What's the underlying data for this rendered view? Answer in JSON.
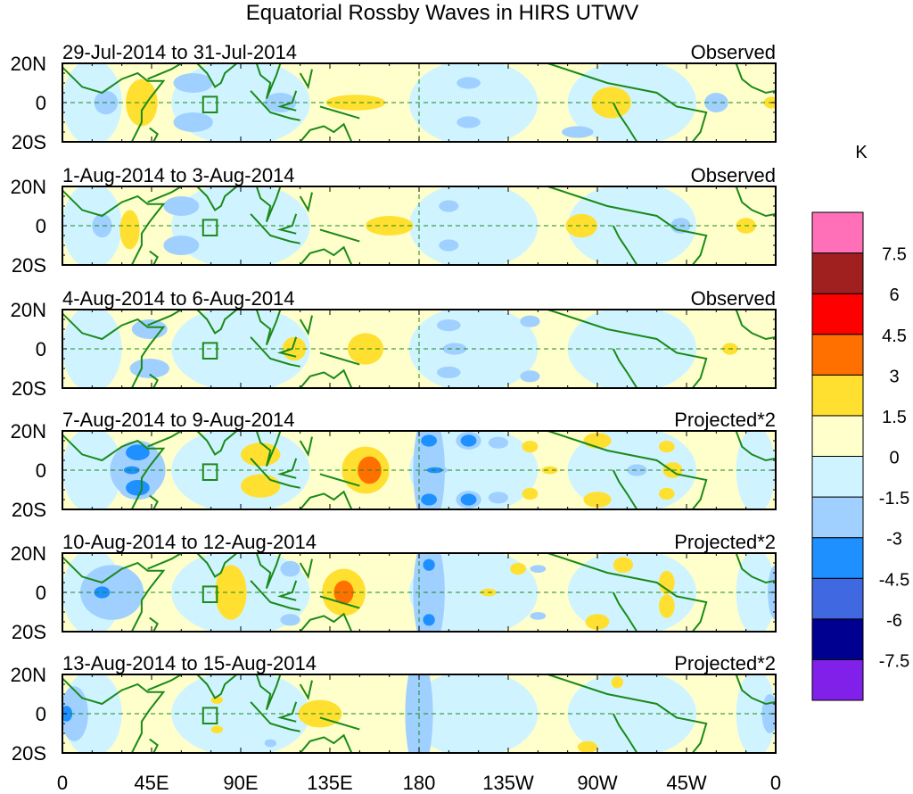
{
  "chart_data": {
    "type": "heatmap",
    "title": "Equatorial Rossby Waves in HIRS UTWV",
    "units_label": "K",
    "xlabel": "",
    "ylabel": "",
    "x_range_deg_east": [
      0,
      360
    ],
    "y_range_deg": [
      -20,
      20
    ],
    "x_tick_labels": [
      "0",
      "45E",
      "90E",
      "135E",
      "180",
      "135W",
      "90W",
      "45W",
      "0"
    ],
    "x_tick_values": [
      0,
      45,
      90,
      135,
      180,
      225,
      270,
      315,
      360
    ],
    "y_tick_labels": [
      "20N",
      "0",
      "20S"
    ],
    "y_tick_values": [
      20,
      0,
      -20
    ],
    "reference_lines": {
      "equator_lat": 0,
      "dateline_lon": 180,
      "style": "dashed green"
    },
    "panels": [
      {
        "date_range": "29-Jul-2014 to 31-Jul-2014",
        "status": "Observed",
        "anomalies": [
          {
            "lon": 40,
            "lat": 0,
            "value": 2.0,
            "sx": 8,
            "sy": 12
          },
          {
            "lon": 148,
            "lat": 0,
            "value": 1.8,
            "sx": 15,
            "sy": 4
          },
          {
            "lon": 277,
            "lat": 0,
            "value": 2.0,
            "sx": 10,
            "sy": 8
          },
          {
            "lon": 358,
            "lat": 0,
            "value": 1.6,
            "sx": 4,
            "sy": 3
          },
          {
            "lon": 22,
            "lat": 0,
            "value": -1.8,
            "sx": 6,
            "sy": 6
          },
          {
            "lon": 66,
            "lat": 10,
            "value": -1.8,
            "sx": 10,
            "sy": 5
          },
          {
            "lon": 66,
            "lat": -10,
            "value": -1.8,
            "sx": 10,
            "sy": 5
          },
          {
            "lon": 110,
            "lat": 0,
            "value": -1.7,
            "sx": 8,
            "sy": 5
          },
          {
            "lon": 205,
            "lat": 10,
            "value": -1.6,
            "sx": 6,
            "sy": 3
          },
          {
            "lon": 205,
            "lat": -10,
            "value": -1.6,
            "sx": 6,
            "sy": 3
          },
          {
            "lon": 330,
            "lat": 0,
            "value": -1.7,
            "sx": 6,
            "sy": 5
          },
          {
            "lon": 260,
            "lat": -15,
            "value": -1.6,
            "sx": 8,
            "sy": 3
          }
        ]
      },
      {
        "date_range": "1-Aug-2014 to 3-Aug-2014",
        "status": "Observed",
        "anomalies": [
          {
            "lon": 34,
            "lat": -2,
            "value": 2.0,
            "sx": 5,
            "sy": 10
          },
          {
            "lon": 165,
            "lat": 0,
            "value": 2.0,
            "sx": 12,
            "sy": 5
          },
          {
            "lon": 262,
            "lat": 0,
            "value": 2.0,
            "sx": 8,
            "sy": 6
          },
          {
            "lon": 345,
            "lat": 0,
            "value": 1.8,
            "sx": 5,
            "sy": 4
          },
          {
            "lon": 20,
            "lat": 0,
            "value": -1.8,
            "sx": 5,
            "sy": 6
          },
          {
            "lon": 60,
            "lat": 10,
            "value": -1.8,
            "sx": 9,
            "sy": 5
          },
          {
            "lon": 60,
            "lat": -10,
            "value": -1.8,
            "sx": 9,
            "sy": 5
          },
          {
            "lon": 195,
            "lat": 10,
            "value": -1.6,
            "sx": 5,
            "sy": 3
          },
          {
            "lon": 195,
            "lat": -10,
            "value": -1.6,
            "sx": 5,
            "sy": 3
          },
          {
            "lon": 312,
            "lat": 0,
            "value": -1.7,
            "sx": 5,
            "sy": 4
          }
        ]
      },
      {
        "date_range": "4-Aug-2014 to 6-Aug-2014",
        "status": "Observed",
        "anomalies": [
          {
            "lon": 117,
            "lat": 0,
            "value": 1.8,
            "sx": 6,
            "sy": 6
          },
          {
            "lon": 153,
            "lat": 0,
            "value": 2.0,
            "sx": 9,
            "sy": 8
          },
          {
            "lon": 337,
            "lat": 0,
            "value": 1.7,
            "sx": 4,
            "sy": 3
          },
          {
            "lon": 44,
            "lat": 10,
            "value": -1.8,
            "sx": 9,
            "sy": 5
          },
          {
            "lon": 44,
            "lat": -10,
            "value": -1.8,
            "sx": 10,
            "sy": 5
          },
          {
            "lon": 195,
            "lat": 12,
            "value": -1.6,
            "sx": 6,
            "sy": 3
          },
          {
            "lon": 198,
            "lat": 0,
            "value": -1.6,
            "sx": 6,
            "sy": 3
          },
          {
            "lon": 195,
            "lat": -12,
            "value": -1.6,
            "sx": 6,
            "sy": 3
          },
          {
            "lon": 236,
            "lat": 14,
            "value": -1.6,
            "sx": 5,
            "sy": 3
          },
          {
            "lon": 236,
            "lat": -14,
            "value": -1.6,
            "sx": 5,
            "sy": 3
          }
        ]
      },
      {
        "date_range": "7-Aug-2014 to 9-Aug-2014",
        "status": "Projected*2",
        "anomalies": [
          {
            "lon": 100,
            "lat": 8,
            "value": 2.2,
            "sx": 10,
            "sy": 6
          },
          {
            "lon": 100,
            "lat": -8,
            "value": 2.2,
            "sx": 10,
            "sy": 6
          },
          {
            "lon": 155,
            "lat": 0,
            "value": 3.8,
            "sx": 6,
            "sy": 7
          },
          {
            "lon": 153,
            "lat": 0,
            "value": 2.0,
            "sx": 12,
            "sy": 12
          },
          {
            "lon": 246,
            "lat": 0,
            "value": 1.8,
            "sx": 4,
            "sy": 2
          },
          {
            "lon": 270,
            "lat": 15,
            "value": 1.8,
            "sx": 7,
            "sy": 4
          },
          {
            "lon": 270,
            "lat": -15,
            "value": 1.8,
            "sx": 7,
            "sy": 4
          },
          {
            "lon": 308,
            "lat": 0,
            "value": 1.8,
            "sx": 5,
            "sy": 4
          },
          {
            "lon": 305,
            "lat": 12,
            "value": 1.7,
            "sx": 4,
            "sy": 3
          },
          {
            "lon": 305,
            "lat": -12,
            "value": 1.7,
            "sx": 4,
            "sy": 3
          },
          {
            "lon": 236,
            "lat": 12,
            "value": 1.7,
            "sx": 4,
            "sy": 3
          },
          {
            "lon": 236,
            "lat": -12,
            "value": 1.7,
            "sx": 4,
            "sy": 3
          },
          {
            "lon": 38,
            "lat": 9,
            "value": -3.5,
            "sx": 6,
            "sy": 4
          },
          {
            "lon": 38,
            "lat": -9,
            "value": -3.5,
            "sx": 6,
            "sy": 4
          },
          {
            "lon": 35,
            "lat": 0,
            "value": -3.2,
            "sx": 4,
            "sy": 2
          },
          {
            "lon": 38,
            "lat": 0,
            "value": -2.0,
            "sx": 14,
            "sy": 14
          },
          {
            "lon": 185,
            "lat": 0,
            "value": -2.0,
            "sx": 8,
            "sy": 30
          },
          {
            "lon": 185,
            "lat": 15,
            "value": -3.4,
            "sx": 4,
            "sy": 3
          },
          {
            "lon": 185,
            "lat": -15,
            "value": -3.4,
            "sx": 4,
            "sy": 3
          },
          {
            "lon": 188,
            "lat": 0,
            "value": -3.2,
            "sx": 4,
            "sy": 1.5
          },
          {
            "lon": 205,
            "lat": 15,
            "value": -3.2,
            "sx": 4,
            "sy": 3
          },
          {
            "lon": 205,
            "lat": -15,
            "value": -3.2,
            "sx": 4,
            "sy": 3
          },
          {
            "lon": 220,
            "lat": 14,
            "value": -1.8,
            "sx": 5,
            "sy": 3
          },
          {
            "lon": 220,
            "lat": -14,
            "value": -1.8,
            "sx": 5,
            "sy": 3
          },
          {
            "lon": 290,
            "lat": 0,
            "value": -1.7,
            "sx": 5,
            "sy": 3
          }
        ]
      },
      {
        "date_range": "10-Aug-2014 to 12-Aug-2014",
        "status": "Projected*2",
        "anomalies": [
          {
            "lon": 85,
            "lat": 0,
            "value": 2.2,
            "sx": 8,
            "sy": 14
          },
          {
            "lon": 142,
            "lat": 0,
            "value": 2.2,
            "sx": 11,
            "sy": 12
          },
          {
            "lon": 142,
            "lat": 0,
            "value": 3.8,
            "sx": 5,
            "sy": 6
          },
          {
            "lon": 215,
            "lat": 0,
            "value": 1.8,
            "sx": 4,
            "sy": 2
          },
          {
            "lon": 230,
            "lat": 12,
            "value": 1.7,
            "sx": 4,
            "sy": 3
          },
          {
            "lon": 283,
            "lat": 14,
            "value": 1.8,
            "sx": 5,
            "sy": 4
          },
          {
            "lon": 270,
            "lat": -15,
            "value": 1.8,
            "sx": 6,
            "sy": 4
          },
          {
            "lon": 305,
            "lat": 5,
            "value": 1.8,
            "sx": 4,
            "sy": 6
          },
          {
            "lon": 305,
            "lat": -7,
            "value": 1.8,
            "sx": 4,
            "sy": 6
          },
          {
            "lon": 20,
            "lat": 0,
            "value": -3.2,
            "sx": 4,
            "sy": 3
          },
          {
            "lon": 25,
            "lat": 0,
            "value": -2.0,
            "sx": 16,
            "sy": 14
          },
          {
            "lon": 185,
            "lat": 0,
            "value": -2.0,
            "sx": 8,
            "sy": 30
          },
          {
            "lon": 185,
            "lat": 14,
            "value": -3.4,
            "sx": 3,
            "sy": 3
          },
          {
            "lon": 185,
            "lat": -14,
            "value": -3.4,
            "sx": 3,
            "sy": 3
          },
          {
            "lon": 115,
            "lat": 12,
            "value": -1.8,
            "sx": 5,
            "sy": 4
          },
          {
            "lon": 115,
            "lat": -14,
            "value": -1.8,
            "sx": 5,
            "sy": 3
          },
          {
            "lon": 240,
            "lat": 12,
            "value": -1.7,
            "sx": 4,
            "sy": 2
          },
          {
            "lon": 240,
            "lat": -12,
            "value": -1.7,
            "sx": 4,
            "sy": 2
          },
          {
            "lon": 360,
            "lat": 0,
            "value": -1.8,
            "sx": 4,
            "sy": 14
          }
        ]
      },
      {
        "date_range": "13-Aug-2014 to 15-Aug-2014",
        "status": "Projected*2",
        "anomalies": [
          {
            "lon": 130,
            "lat": 0,
            "value": 2.2,
            "sx": 11,
            "sy": 7
          },
          {
            "lon": 78,
            "lat": 7,
            "value": 1.7,
            "sx": 3,
            "sy": 2
          },
          {
            "lon": 78,
            "lat": -8,
            "value": 1.7,
            "sx": 3,
            "sy": 2
          },
          {
            "lon": 280,
            "lat": 16,
            "value": 1.7,
            "sx": 3,
            "sy": 3
          },
          {
            "lon": 265,
            "lat": -17,
            "value": 1.7,
            "sx": 5,
            "sy": 3
          },
          {
            "lon": 2,
            "lat": 0,
            "value": -3.2,
            "sx": 3,
            "sy": 4
          },
          {
            "lon": 6,
            "lat": 0,
            "value": -2.0,
            "sx": 7,
            "sy": 14
          },
          {
            "lon": 180,
            "lat": 0,
            "value": -2.0,
            "sx": 7,
            "sy": 30
          },
          {
            "lon": 357,
            "lat": 0,
            "value": -2.0,
            "sx": 4,
            "sy": 10
          },
          {
            "lon": 105,
            "lat": -15,
            "value": -1.7,
            "sx": 3,
            "sy": 2
          }
        ]
      }
    ],
    "colorbar": {
      "label": "K",
      "levels": [
        -7.5,
        -6,
        -4.5,
        -3,
        -1.5,
        0,
        1.5,
        3,
        4.5,
        6,
        7.5
      ],
      "level_labels": [
        "-7.5",
        "-6",
        "-4.5",
        "-3",
        "-1.5",
        "0",
        "1.5",
        "3",
        "4.5",
        "6",
        "7.5"
      ],
      "colors": [
        "#8020e8",
        "#000090",
        "#4068e0",
        "#1e90ff",
        "#a0d0ff",
        "#d0f4ff",
        "#ffffcc",
        "#ffe030",
        "#ff7000",
        "#ff0000",
        "#a02020",
        "#ff70b8"
      ]
    }
  },
  "colors": {
    "coastline": "#1a8a1a",
    "background": "#ffffff",
    "axis": "#000000"
  }
}
